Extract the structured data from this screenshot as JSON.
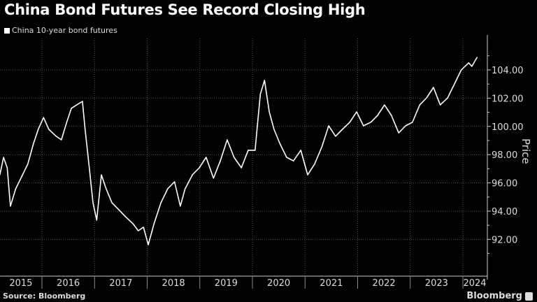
{
  "chart_data": {
    "type": "line",
    "title": "China Bond Futures See Record Closing High",
    "legend": [
      "China 10-year bond futures"
    ],
    "legend_position": "top-left",
    "xlabel": "",
    "ylabel": "Price",
    "xlim": [
      2015.2,
      2024.35
    ],
    "ylim": [
      90.7,
      106.2
    ],
    "yticks": [
      92,
      94,
      96,
      98,
      100,
      102,
      104
    ],
    "ytick_labels": [
      "92.00",
      "94.00",
      "96.00",
      "98.00",
      "100.00",
      "102.00",
      "104.00"
    ],
    "xtick_labels": [
      "2015",
      "2016",
      "2017",
      "2018",
      "2019",
      "2020",
      "2021",
      "2022",
      "2023",
      "2024"
    ],
    "grid": true,
    "series": [
      {
        "name": "China 10-year bond futures",
        "color": "#ffffff",
        "x": [
          2015.2,
          2015.27,
          2015.34,
          2015.4,
          2015.5,
          2015.6,
          2015.73,
          2015.84,
          2015.93,
          2016.03,
          2016.13,
          2016.27,
          2016.37,
          2016.47,
          2016.56,
          2016.66,
          2016.77,
          2016.82,
          2016.9,
          2016.97,
          2017.04,
          2017.13,
          2017.22,
          2017.33,
          2017.46,
          2017.59,
          2017.73,
          2017.83,
          2017.93,
          2018.02,
          2018.13,
          2018.26,
          2018.39,
          2018.52,
          2018.63,
          2018.72,
          2018.86,
          2018.99,
          2019.12,
          2019.26,
          2019.39,
          2019.52,
          2019.65,
          2019.79,
          2019.92,
          2020.05,
          2020.15,
          2020.23,
          2020.32,
          2020.41,
          2020.52,
          2020.65,
          2020.78,
          2020.92,
          2021.05,
          2021.18,
          2021.32,
          2021.45,
          2021.58,
          2021.71,
          2021.85,
          2021.98,
          2022.11,
          2022.25,
          2022.38,
          2022.51,
          2022.64,
          2022.78,
          2022.91,
          2023.04,
          2023.18,
          2023.31,
          2023.44,
          2023.57,
          2023.71,
          2023.84,
          2023.97,
          2024.11,
          2024.17,
          2024.27
        ],
        "values": [
          96.57,
          97.81,
          97.07,
          94.35,
          95.58,
          96.33,
          97.32,
          98.8,
          99.79,
          100.63,
          99.79,
          99.3,
          99.05,
          100.29,
          101.28,
          101.52,
          101.77,
          99.79,
          97.07,
          94.59,
          93.36,
          96.57,
          95.58,
          94.59,
          94.1,
          93.6,
          93.11,
          92.61,
          92.86,
          91.62,
          93.11,
          94.59,
          95.58,
          96.08,
          94.35,
          95.58,
          96.57,
          97.07,
          97.81,
          96.33,
          97.56,
          99.05,
          97.81,
          97.07,
          98.31,
          98.31,
          102.27,
          103.26,
          101.03,
          99.79,
          98.8,
          97.81,
          97.56,
          98.31,
          96.57,
          97.32,
          98.55,
          100.04,
          99.3,
          99.79,
          100.29,
          101.03,
          100.04,
          100.29,
          100.78,
          101.52,
          100.78,
          99.54,
          100.04,
          100.29,
          101.52,
          102.02,
          102.76,
          101.52,
          102.02,
          103.01,
          104.0,
          104.5,
          104.25,
          104.89
        ]
      }
    ]
  },
  "footer": {
    "source": "Source: Bloomberg",
    "brand": "Bloomberg"
  }
}
